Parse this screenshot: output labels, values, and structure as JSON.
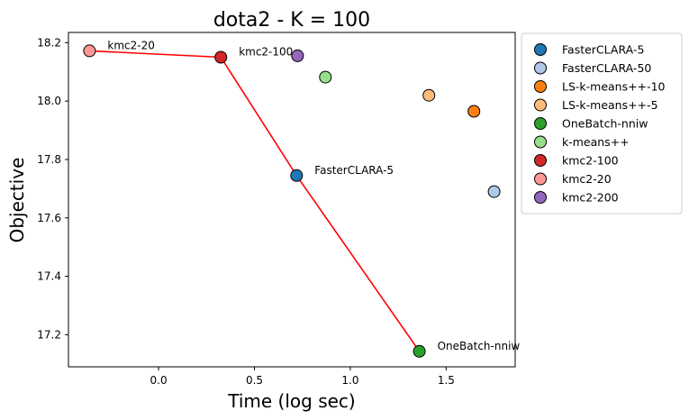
{
  "chart_data": {
    "type": "scatter",
    "title": "dota2 - K = 100",
    "xlabel": "Time (log sec)",
    "ylabel": "Objective",
    "xlim": [
      -0.47,
      1.86
    ],
    "ylim": [
      17.09,
      18.235
    ],
    "xticks": [
      0.0,
      0.5,
      1.0,
      1.5
    ],
    "xtick_labels": [
      "0.0",
      "0.5",
      "1.0",
      "1.5"
    ],
    "yticks": [
      17.2,
      17.4,
      17.6,
      17.8,
      18.0,
      18.2
    ],
    "ytick_labels": [
      "17.2",
      "17.4",
      "17.6",
      "17.8",
      "18.0",
      "18.2"
    ],
    "grid": false,
    "legend_position": "outside-right",
    "series": [
      {
        "name": "FasterCLARA-5",
        "color": "#1f77b4",
        "x": 0.72,
        "y": 17.745,
        "annotated": true
      },
      {
        "name": "FasterCLARA-50",
        "color": "#aec7e8",
        "x": 1.75,
        "y": 17.69,
        "annotated": false
      },
      {
        "name": "LS-k-means++-10",
        "color": "#ff7f0e",
        "x": 1.645,
        "y": 17.965,
        "annotated": false
      },
      {
        "name": "LS-k-means++-5",
        "color": "#ffbb78",
        "x": 1.41,
        "y": 18.02,
        "annotated": false
      },
      {
        "name": "OneBatch-nniw",
        "color": "#2ca02c",
        "x": 1.36,
        "y": 17.143,
        "annotated": true
      },
      {
        "name": "k-means++",
        "color": "#98df8a",
        "x": 0.87,
        "y": 18.082,
        "annotated": false
      },
      {
        "name": "kmc2-100",
        "color": "#d62728",
        "x": 0.325,
        "y": 18.15,
        "annotated": true
      },
      {
        "name": "kmc2-20",
        "color": "#ff9896",
        "x": -0.36,
        "y": 18.172,
        "annotated": true
      },
      {
        "name": "kmc2-200",
        "color": "#9467bd",
        "x": 0.725,
        "y": 18.155,
        "annotated": false
      }
    ],
    "pareto_line": {
      "color": "#ff0000",
      "points": [
        [
          -0.36,
          18.172
        ],
        [
          0.325,
          18.15
        ],
        [
          0.72,
          17.745
        ],
        [
          1.36,
          17.143
        ]
      ]
    }
  }
}
